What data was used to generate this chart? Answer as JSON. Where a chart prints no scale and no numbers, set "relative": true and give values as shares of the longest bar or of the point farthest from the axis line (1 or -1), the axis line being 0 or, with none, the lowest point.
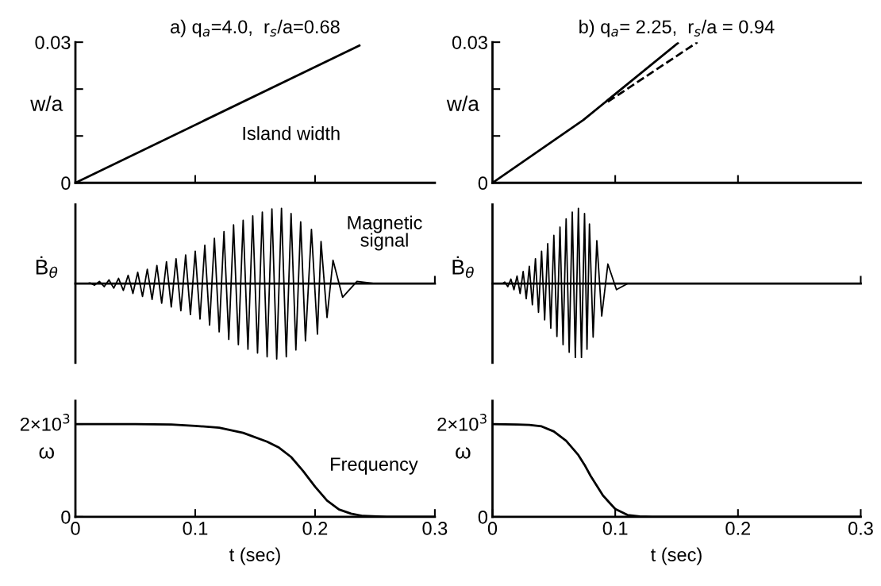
{
  "chart_data": [
    {
      "type": "line",
      "title": "a) q$_{a}$=4.0,  r$_{s}$/a=0.68",
      "ylabel": "w/a",
      "xlim": [
        0,
        0.3
      ],
      "xticks": [
        {
          "value": 0.1,
          "label": null
        },
        {
          "value": 0.2,
          "label": null
        }
      ],
      "ylim": [
        0,
        0.03
      ],
      "yticks": [
        {
          "value": 0,
          "label": "0"
        },
        {
          "value": 0.01,
          "label": null
        },
        {
          "value": 0.02,
          "label": null
        },
        {
          "value": 0.03,
          "label": "0.03"
        }
      ],
      "tick_labels": "y",
      "grid": false,
      "legend": false,
      "series": [
        {
          "color": "#000000",
          "x": [
            0,
            0.237
          ],
          "values": [
            0,
            0.0293
          ]
        }
      ],
      "annotations": [
        "Island width"
      ]
    },
    {
      "type": "line",
      "title": "b) q$_{a}$= 2.25,  r$_{s}$/a = 0.94",
      "ylabel": "w/a",
      "xlim": [
        0,
        0.3
      ],
      "xticks": [
        {
          "value": 0.1,
          "label": null
        },
        {
          "value": 0.2,
          "label": null
        }
      ],
      "ylim": [
        0,
        0.03
      ],
      "yticks": [
        {
          "value": 0,
          "label": "0"
        },
        {
          "value": 0.01,
          "label": null
        },
        {
          "value": 0.02,
          "label": null
        },
        {
          "value": 0.03,
          "label": "0.03"
        }
      ],
      "tick_labels": "y",
      "grid": false,
      "legend": false,
      "series": [
        {
          "color": "#000000",
          "x": [
            0,
            0.074,
            0.151
          ],
          "values": [
            0,
            0.0134,
            0.0298
          ]
        },
        {
          "color": "#000000",
          "line_style": "dashed",
          "x": [
            0.094,
            0.167
          ],
          "values": [
            0.0173,
            0.03
          ]
        }
      ]
    },
    {
      "type": "line",
      "relative": true,
      "ylabel": "Ḃ$_{θ}$",
      "xlim": [
        0,
        0.3
      ],
      "xticks": [
        {
          "value": 0.3,
          "label": null
        }
      ],
      "tick_labels": false,
      "grid": false,
      "legend": false,
      "series": [
        {
          "color": "#000000",
          "x": [
            0,
            0.01,
            0.012,
            0.016,
            0.02,
            0.024,
            0.028,
            0.032,
            0.036,
            0.04,
            0.044,
            0.048,
            0.052,
            0.056,
            0.06,
            0.064,
            0.068,
            0.072,
            0.076,
            0.08,
            0.084,
            0.088,
            0.092,
            0.096,
            0.1,
            0.104,
            0.108,
            0.112,
            0.116,
            0.12,
            0.124,
            0.128,
            0.132,
            0.136,
            0.14,
            0.144,
            0.148,
            0.152,
            0.156,
            0.16,
            0.164,
            0.168,
            0.172,
            0.176,
            0.18,
            0.184,
            0.188,
            0.192,
            0.197,
            0.202,
            0.205,
            0.21,
            0.215,
            0.223,
            0.235,
            0.25,
            0.3
          ],
          "values": [
            0,
            0,
            0.01,
            -0.02,
            0.03,
            -0.04,
            0.05,
            -0.06,
            0.07,
            -0.09,
            0.11,
            -0.13,
            0.15,
            -0.17,
            0.19,
            -0.21,
            0.24,
            -0.26,
            0.29,
            -0.31,
            0.33,
            -0.36,
            0.38,
            -0.41,
            0.43,
            -0.47,
            0.51,
            -0.55,
            0.6,
            -0.64,
            0.69,
            -0.74,
            0.78,
            -0.81,
            0.84,
            -0.87,
            0.9,
            -0.92,
            0.95,
            -0.97,
            0.99,
            -1.0,
            1.0,
            -0.97,
            0.93,
            -0.88,
            0.82,
            -0.76,
            0.72,
            -0.67,
            0.56,
            -0.45,
            0.31,
            -0.18,
            0.03,
            0,
            0
          ]
        }
      ],
      "annotations": [
        "Magnetic\nsignal"
      ]
    },
    {
      "type": "line",
      "relative": true,
      "ylabel": "Ḃ$_{θ}$",
      "xlim": [
        0,
        0.3
      ],
      "xticks": [
        {
          "value": 0.3,
          "label": null
        }
      ],
      "tick_labels": false,
      "grid": false,
      "legend": false,
      "series": [
        {
          "color": "#000000",
          "x": [
            0,
            0.008,
            0.01,
            0.0125,
            0.015,
            0.0175,
            0.02,
            0.0225,
            0.025,
            0.0275,
            0.03,
            0.0325,
            0.035,
            0.0375,
            0.04,
            0.0425,
            0.045,
            0.0475,
            0.05,
            0.0525,
            0.055,
            0.0575,
            0.06,
            0.0625,
            0.065,
            0.0675,
            0.07,
            0.0725,
            0.075,
            0.077,
            0.079,
            0.082,
            0.085,
            0.089,
            0.094,
            0.101,
            0.11,
            0.3
          ],
          "values": [
            0,
            0,
            0.02,
            -0.04,
            0.06,
            -0.08,
            0.1,
            -0.13,
            0.16,
            -0.2,
            0.23,
            -0.28,
            0.33,
            -0.38,
            0.43,
            -0.48,
            0.53,
            -0.59,
            0.64,
            -0.7,
            0.75,
            -0.81,
            0.86,
            -0.91,
            0.95,
            -0.98,
            1.0,
            -0.98,
            0.93,
            -0.87,
            0.79,
            -0.71,
            0.57,
            -0.43,
            0.26,
            -0.08,
            0,
            0
          ]
        }
      ]
    },
    {
      "type": "line",
      "ylabel": "ω",
      "xlabel": "t (sec)",
      "xlim": [
        0,
        0.3
      ],
      "xticks": [
        0,
        0.1,
        0.2,
        0.3
      ],
      "ylim": [
        0,
        2500
      ],
      "yticks": [
        {
          "value": 0,
          "label": "0"
        },
        {
          "value": 2000,
          "label": "2×10$^{3}$"
        }
      ],
      "grid": false,
      "legend": false,
      "series": [
        {
          "color": "#000000",
          "x": [
            0,
            0.05,
            0.08,
            0.1,
            0.12,
            0.14,
            0.16,
            0.17,
            0.18,
            0.19,
            0.2,
            0.21,
            0.22,
            0.23,
            0.24,
            0.26,
            0.3
          ],
          "values": [
            2000,
            2000,
            1990,
            1960,
            1920,
            1810,
            1620,
            1490,
            1290,
            990,
            650,
            350,
            160,
            70,
            20,
            0,
            0
          ]
        }
      ],
      "annotations": [
        "Frequency"
      ]
    },
    {
      "type": "line",
      "ylabel": "ω",
      "xlabel": "t (sec)",
      "xlim": [
        0,
        0.3
      ],
      "xticks": [
        0,
        0.1,
        0.2,
        0.3
      ],
      "ylim": [
        0,
        2500
      ],
      "yticks": [
        {
          "value": 0,
          "label": "0"
        },
        {
          "value": 2000,
          "label": "2×10$^{3}$"
        }
      ],
      "grid": false,
      "legend": false,
      "series": [
        {
          "color": "#000000",
          "x": [
            0,
            0.02,
            0.03,
            0.04,
            0.05,
            0.06,
            0.07,
            0.075,
            0.08,
            0.09,
            0.1,
            0.11,
            0.12,
            0.13,
            0.3
          ],
          "values": [
            2000,
            1990,
            1980,
            1950,
            1840,
            1640,
            1330,
            1120,
            880,
            460,
            170,
            40,
            10,
            0,
            0
          ]
        }
      ]
    }
  ]
}
